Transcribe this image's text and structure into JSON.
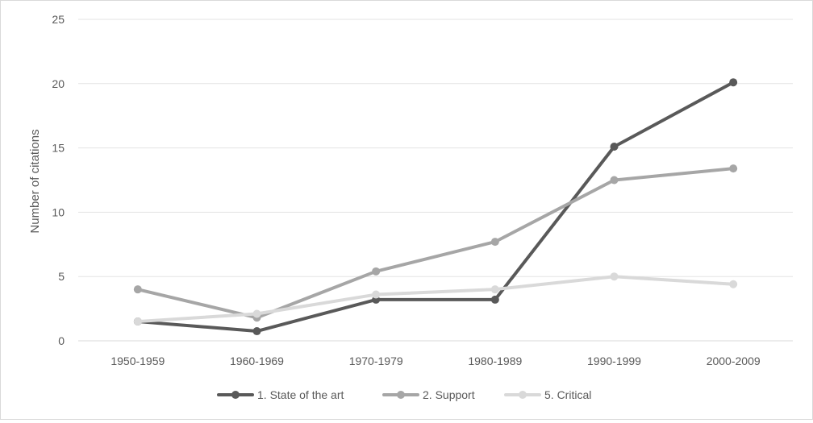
{
  "chart_data": {
    "type": "line",
    "categories": [
      "1950-1959",
      "1960-1969",
      "1970-1979",
      "1980-1989",
      "1990-1999",
      "2000-2009"
    ],
    "series": [
      {
        "name": "1. State of the art",
        "color": "#595959",
        "values": [
          1.5,
          0.75,
          3.2,
          3.2,
          15.1,
          20.1
        ]
      },
      {
        "name": "2. Support",
        "color": "#a6a6a6",
        "values": [
          4.0,
          1.8,
          5.4,
          7.7,
          12.5,
          13.4
        ]
      },
      {
        "name": "5. Critical",
        "color": "#d9d9d9",
        "values": [
          1.5,
          2.1,
          3.6,
          4.0,
          5.0,
          4.4
        ]
      }
    ],
    "ylabel": "Number of citations",
    "ylim": [
      0,
      25
    ],
    "yticks": [
      "0",
      "5",
      "10",
      "15",
      "20",
      "25"
    ],
    "grid": true,
    "legend_position": "bottom"
  }
}
